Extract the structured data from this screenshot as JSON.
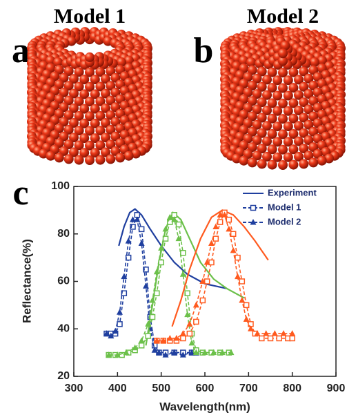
{
  "panels": [
    {
      "label": "a",
      "title": "Model 1"
    },
    {
      "label": "b",
      "title": "Model 2"
    }
  ],
  "chart_label": "c",
  "chart_data": {
    "type": "line",
    "xlabel": "Wavelength(nm)",
    "ylabel": "Reflectance(%)",
    "xlim": [
      300,
      900
    ],
    "xticks": [
      300,
      400,
      500,
      600,
      700,
      800,
      900
    ],
    "ylim": [
      20,
      100
    ],
    "yticks": [
      20,
      40,
      60,
      80,
      100
    ],
    "legend": "upper right",
    "series": [
      {
        "name": "Experiment",
        "color": "#1f3f9f",
        "marker": "none",
        "dashed": false,
        "x": [
          403,
          415,
          428,
          440,
          455,
          475,
          500,
          530,
          560,
          600,
          650
        ],
        "values": [
          75,
          83,
          89,
          90.5,
          88,
          82,
          75,
          68,
          63,
          59,
          57
        ]
      },
      {
        "name": "Model 1",
        "color": "#1f3f9f",
        "marker": "square",
        "dashed": true,
        "x": [
          375,
          385,
          395,
          405,
          415,
          425,
          435,
          445,
          455,
          465,
          475,
          485,
          495,
          510,
          530,
          550,
          570,
          580
        ],
        "values": [
          38,
          38,
          38,
          42,
          55,
          70,
          83,
          88,
          82,
          65,
          45,
          33,
          30,
          30,
          30,
          30,
          30,
          30
        ]
      },
      {
        "name": "Model 2",
        "color": "#1f3f9f",
        "marker": "triangle",
        "dashed": true,
        "x": [
          375,
          385,
          395,
          405,
          415,
          425,
          435,
          445,
          455,
          465,
          475,
          485,
          495,
          510,
          530,
          550,
          570,
          580
        ],
        "values": [
          38,
          37,
          39,
          47,
          62,
          77,
          86,
          86,
          76,
          58,
          40,
          31,
          30,
          29,
          30,
          29,
          30,
          30
        ]
      },
      {
        "color": "#6cc04a",
        "marker": "none",
        "dashed": false,
        "x": [
          465,
          480,
          495,
          510,
          527,
          545,
          565,
          590,
          620,
          650,
          690
        ],
        "values": [
          33,
          50,
          68,
          82,
          89,
          86,
          78,
          68,
          61,
          57,
          53
        ]
      },
      {
        "color": "#6cc04a",
        "marker": "square",
        "dashed": true,
        "x": [
          380,
          395,
          410,
          425,
          440,
          455,
          470,
          480,
          490,
          500,
          510,
          520,
          530,
          540,
          550,
          560,
          570,
          580,
          595,
          615,
          635,
          655
        ],
        "values": [
          29,
          29,
          29,
          30,
          31,
          33,
          37,
          45,
          55,
          68,
          78,
          85,
          88,
          84,
          72,
          55,
          38,
          31,
          30,
          30,
          30,
          30
        ]
      },
      {
        "color": "#6cc04a",
        "marker": "triangle",
        "dashed": true,
        "x": [
          380,
          400,
          420,
          440,
          455,
          470,
          480,
          490,
          500,
          510,
          520,
          530,
          540,
          550,
          560,
          570,
          580,
          600,
          620,
          640,
          660
        ],
        "values": [
          29,
          29,
          30,
          32,
          35,
          42,
          52,
          64,
          74,
          82,
          87,
          86,
          78,
          63,
          46,
          34,
          30,
          30,
          30,
          30,
          30
        ]
      },
      {
        "color": "#ff5a1f",
        "marker": "none",
        "dashed": false,
        "x": [
          525,
          545,
          565,
          590,
          615,
          640,
          665,
          690,
          715,
          745
        ],
        "values": [
          41,
          52,
          65,
          78,
          87,
          90,
          88,
          83,
          77,
          69
        ]
      },
      {
        "color": "#ff5a1f",
        "marker": "square",
        "dashed": true,
        "x": [
          490,
          505,
          520,
          535,
          550,
          565,
          580,
          595,
          605,
          615,
          625,
          635,
          645,
          655,
          665,
          675,
          685,
          695,
          705,
          715,
          730,
          750,
          770,
          790,
          800
        ],
        "values": [
          35,
          35,
          35,
          35,
          36,
          38,
          43,
          52,
          60,
          68,
          78,
          85,
          89,
          86,
          80,
          70,
          60,
          50,
          42,
          38,
          36,
          36,
          36,
          36,
          36
        ]
      },
      {
        "color": "#ff5a1f",
        "marker": "triangle",
        "dashed": true,
        "x": [
          490,
          505,
          520,
          535,
          550,
          565,
          580,
          595,
          605,
          615,
          625,
          635,
          645,
          655,
          665,
          675,
          685,
          695,
          705,
          720,
          740,
          760,
          780,
          800
        ],
        "values": [
          35,
          35,
          36,
          36,
          38,
          42,
          50,
          60,
          68,
          76,
          83,
          88,
          88,
          82,
          73,
          62,
          52,
          44,
          40,
          38,
          38,
          38,
          38,
          38
        ]
      }
    ]
  }
}
